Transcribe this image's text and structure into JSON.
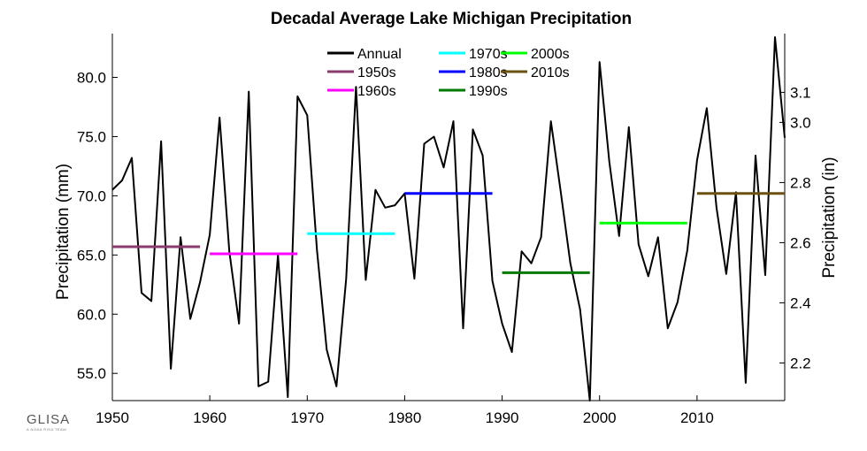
{
  "chart_data": {
    "type": "line",
    "title": "Decadal Average Lake Michigan Precipitation",
    "ylabel": "Precipitation (mm)",
    "y2label": "Precipitation (in)",
    "xlim": [
      1950,
      2019
    ],
    "ylim": [
      52.7,
      83.7
    ],
    "y2lim": [
      2.0748,
      3.2953
    ],
    "xticks": [
      "1950",
      "1960",
      "1970",
      "1980",
      "1990",
      "2000",
      "2010"
    ],
    "yticks": [
      "55.0",
      "60.0",
      "65.0",
      "70.0",
      "75.0",
      "80.0"
    ],
    "y2ticks": [
      "2.2",
      "2.4",
      "2.6",
      "2.8",
      "3.0",
      "3.1"
    ],
    "y2tick_values": [
      2.2,
      2.4,
      2.6,
      2.8,
      3.0,
      3.1
    ],
    "grid": false,
    "legend_position": "top-center",
    "legend": [
      {
        "label": "Annual",
        "color": "#000000"
      },
      {
        "label": "1950s",
        "color": "#8b3a6e"
      },
      {
        "label": "1960s",
        "color": "#ff00ff"
      },
      {
        "label": "1970s",
        "color": "#00ffff"
      },
      {
        "label": "1980s",
        "color": "#0000ff"
      },
      {
        "label": "1990s",
        "color": "#007a00"
      },
      {
        "label": "2000s",
        "color": "#00ff00"
      },
      {
        "label": "2010s",
        "color": "#6b5210"
      }
    ],
    "series": [
      {
        "name": "Annual",
        "color": "#000000",
        "x": [
          1950,
          1951,
          1952,
          1953,
          1954,
          1955,
          1956,
          1957,
          1958,
          1959,
          1960,
          1961,
          1962,
          1963,
          1964,
          1965,
          1966,
          1967,
          1968,
          1969,
          1970,
          1971,
          1972,
          1973,
          1974,
          1975,
          1976,
          1977,
          1978,
          1979,
          1980,
          1981,
          1982,
          1983,
          1984,
          1985,
          1986,
          1987,
          1988,
          1989,
          1990,
          1991,
          1992,
          1993,
          1994,
          1995,
          1996,
          1997,
          1998,
          1999,
          2000,
          2001,
          2002,
          2003,
          2004,
          2005,
          2006,
          2007,
          2008,
          2009,
          2010,
          2011,
          2012,
          2013,
          2014,
          2015,
          2016,
          2017,
          2018,
          2019
        ],
        "y": [
          70.5,
          71.3,
          73.2,
          61.8,
          61.1,
          74.6,
          55.4,
          66.5,
          59.6,
          62.7,
          66.7,
          76.6,
          65.3,
          59.2,
          78.8,
          53.9,
          54.3,
          65.0,
          53.0,
          78.4,
          76.8,
          65.4,
          57.0,
          53.9,
          63.0,
          79.2,
          62.9,
          70.5,
          69.0,
          69.2,
          70.2,
          63.0,
          74.4,
          75.0,
          72.4,
          76.3,
          58.8,
          75.6,
          73.4,
          62.8,
          59.2,
          56.8,
          65.3,
          64.3,
          66.5,
          76.3,
          70.4,
          64.3,
          60.4,
          52.7,
          81.3,
          72.9,
          66.6,
          75.8,
          65.9,
          63.2,
          66.5,
          58.8,
          61.0,
          65.4,
          73.0,
          77.4,
          69.0,
          63.4,
          70.3,
          54.2,
          73.4,
          63.3,
          83.4,
          74.9
        ]
      }
    ],
    "decadal_averages": [
      {
        "label": "1950s",
        "start": 1950,
        "end": 1959,
        "value": 65.7,
        "color": "#8b3a6e"
      },
      {
        "label": "1960s",
        "start": 1960,
        "end": 1969,
        "value": 65.1,
        "color": "#ff00ff"
      },
      {
        "label": "1970s",
        "start": 1970,
        "end": 1979,
        "value": 66.8,
        "color": "#00ffff"
      },
      {
        "label": "1980s",
        "start": 1980,
        "end": 1989,
        "value": 70.2,
        "color": "#0000ff"
      },
      {
        "label": "1990s",
        "start": 1990,
        "end": 1999,
        "value": 63.5,
        "color": "#007a00"
      },
      {
        "label": "2000s",
        "start": 2000,
        "end": 2009,
        "value": 67.7,
        "color": "#00ff00"
      },
      {
        "label": "2010s",
        "start": 2010,
        "end": 2019,
        "value": 70.2,
        "color": "#6b5210"
      }
    ]
  },
  "logo": {
    "main": "GLISA",
    "sub": "A NOAA RISA TEAM"
  }
}
